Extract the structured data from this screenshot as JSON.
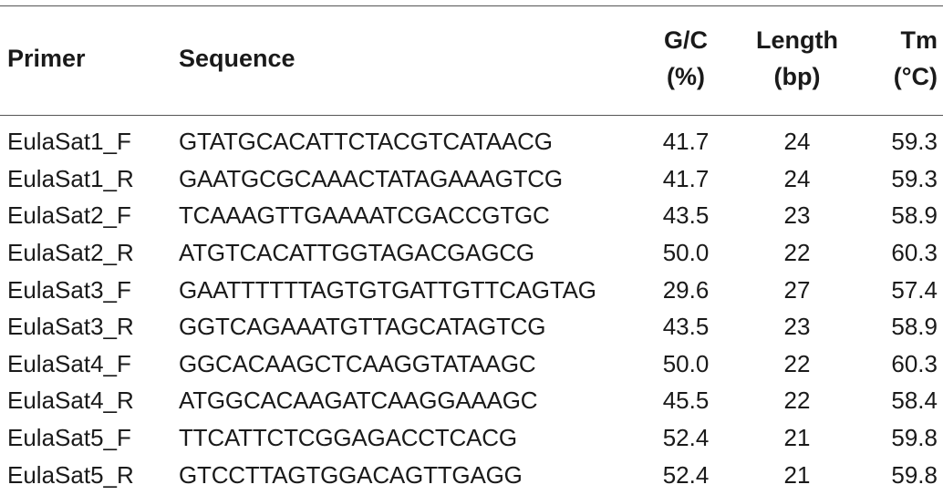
{
  "header": {
    "primer": "Primer",
    "sequence": "Sequence",
    "gc_line1": "G/C",
    "gc_line2": "(%)",
    "length_line1": "Length",
    "length_line2": "(bp)",
    "tm_line1": "Tm",
    "tm_line2": "(°C)"
  },
  "rows": [
    {
      "primer": "EulaSat1_F",
      "sequence": "GTATGCACATTCTACGTCATAACG",
      "gc": "41.7",
      "length": "24",
      "tm": "59.3"
    },
    {
      "primer": "EulaSat1_R",
      "sequence": "GAATGCGCAAACTATAGAAAGTCG",
      "gc": "41.7",
      "length": "24",
      "tm": "59.3"
    },
    {
      "primer": "EulaSat2_F",
      "sequence": "TCAAAGTTGAAAATCGACCGTGC",
      "gc": "43.5",
      "length": "23",
      "tm": "58.9"
    },
    {
      "primer": "EulaSat2_R",
      "sequence": "ATGTCACATTGGTAGACGAGCG",
      "gc": "50.0",
      "length": "22",
      "tm": "60.3"
    },
    {
      "primer": "EulaSat3_F",
      "sequence": "GAATTTTTTAGTGTGATTGTTCAGTAG",
      "gc": "29.6",
      "length": "27",
      "tm": "57.4"
    },
    {
      "primer": "EulaSat3_R",
      "sequence": "GGTCAGAAATGTTAGCATAGTCG",
      "gc": "43.5",
      "length": "23",
      "tm": "58.9"
    },
    {
      "primer": "EulaSat4_F",
      "sequence": "GGCACAAGCTCAAGGTATAAGC",
      "gc": "50.0",
      "length": "22",
      "tm": "60.3"
    },
    {
      "primer": "EulaSat4_R",
      "sequence": "ATGGCACAAGATCAAGGAAAGC",
      "gc": "45.5",
      "length": "22",
      "tm": "58.4"
    },
    {
      "primer": "EulaSat5_F",
      "sequence": "TTCATTCTCGGAGACCTCACG",
      "gc": "52.4",
      "length": "21",
      "tm": "59.8"
    },
    {
      "primer": "EulaSat5_R",
      "sequence": "GTCCTTAGTGGACAGTTGAGG",
      "gc": "52.4",
      "length": "21",
      "tm": "59.8"
    }
  ]
}
